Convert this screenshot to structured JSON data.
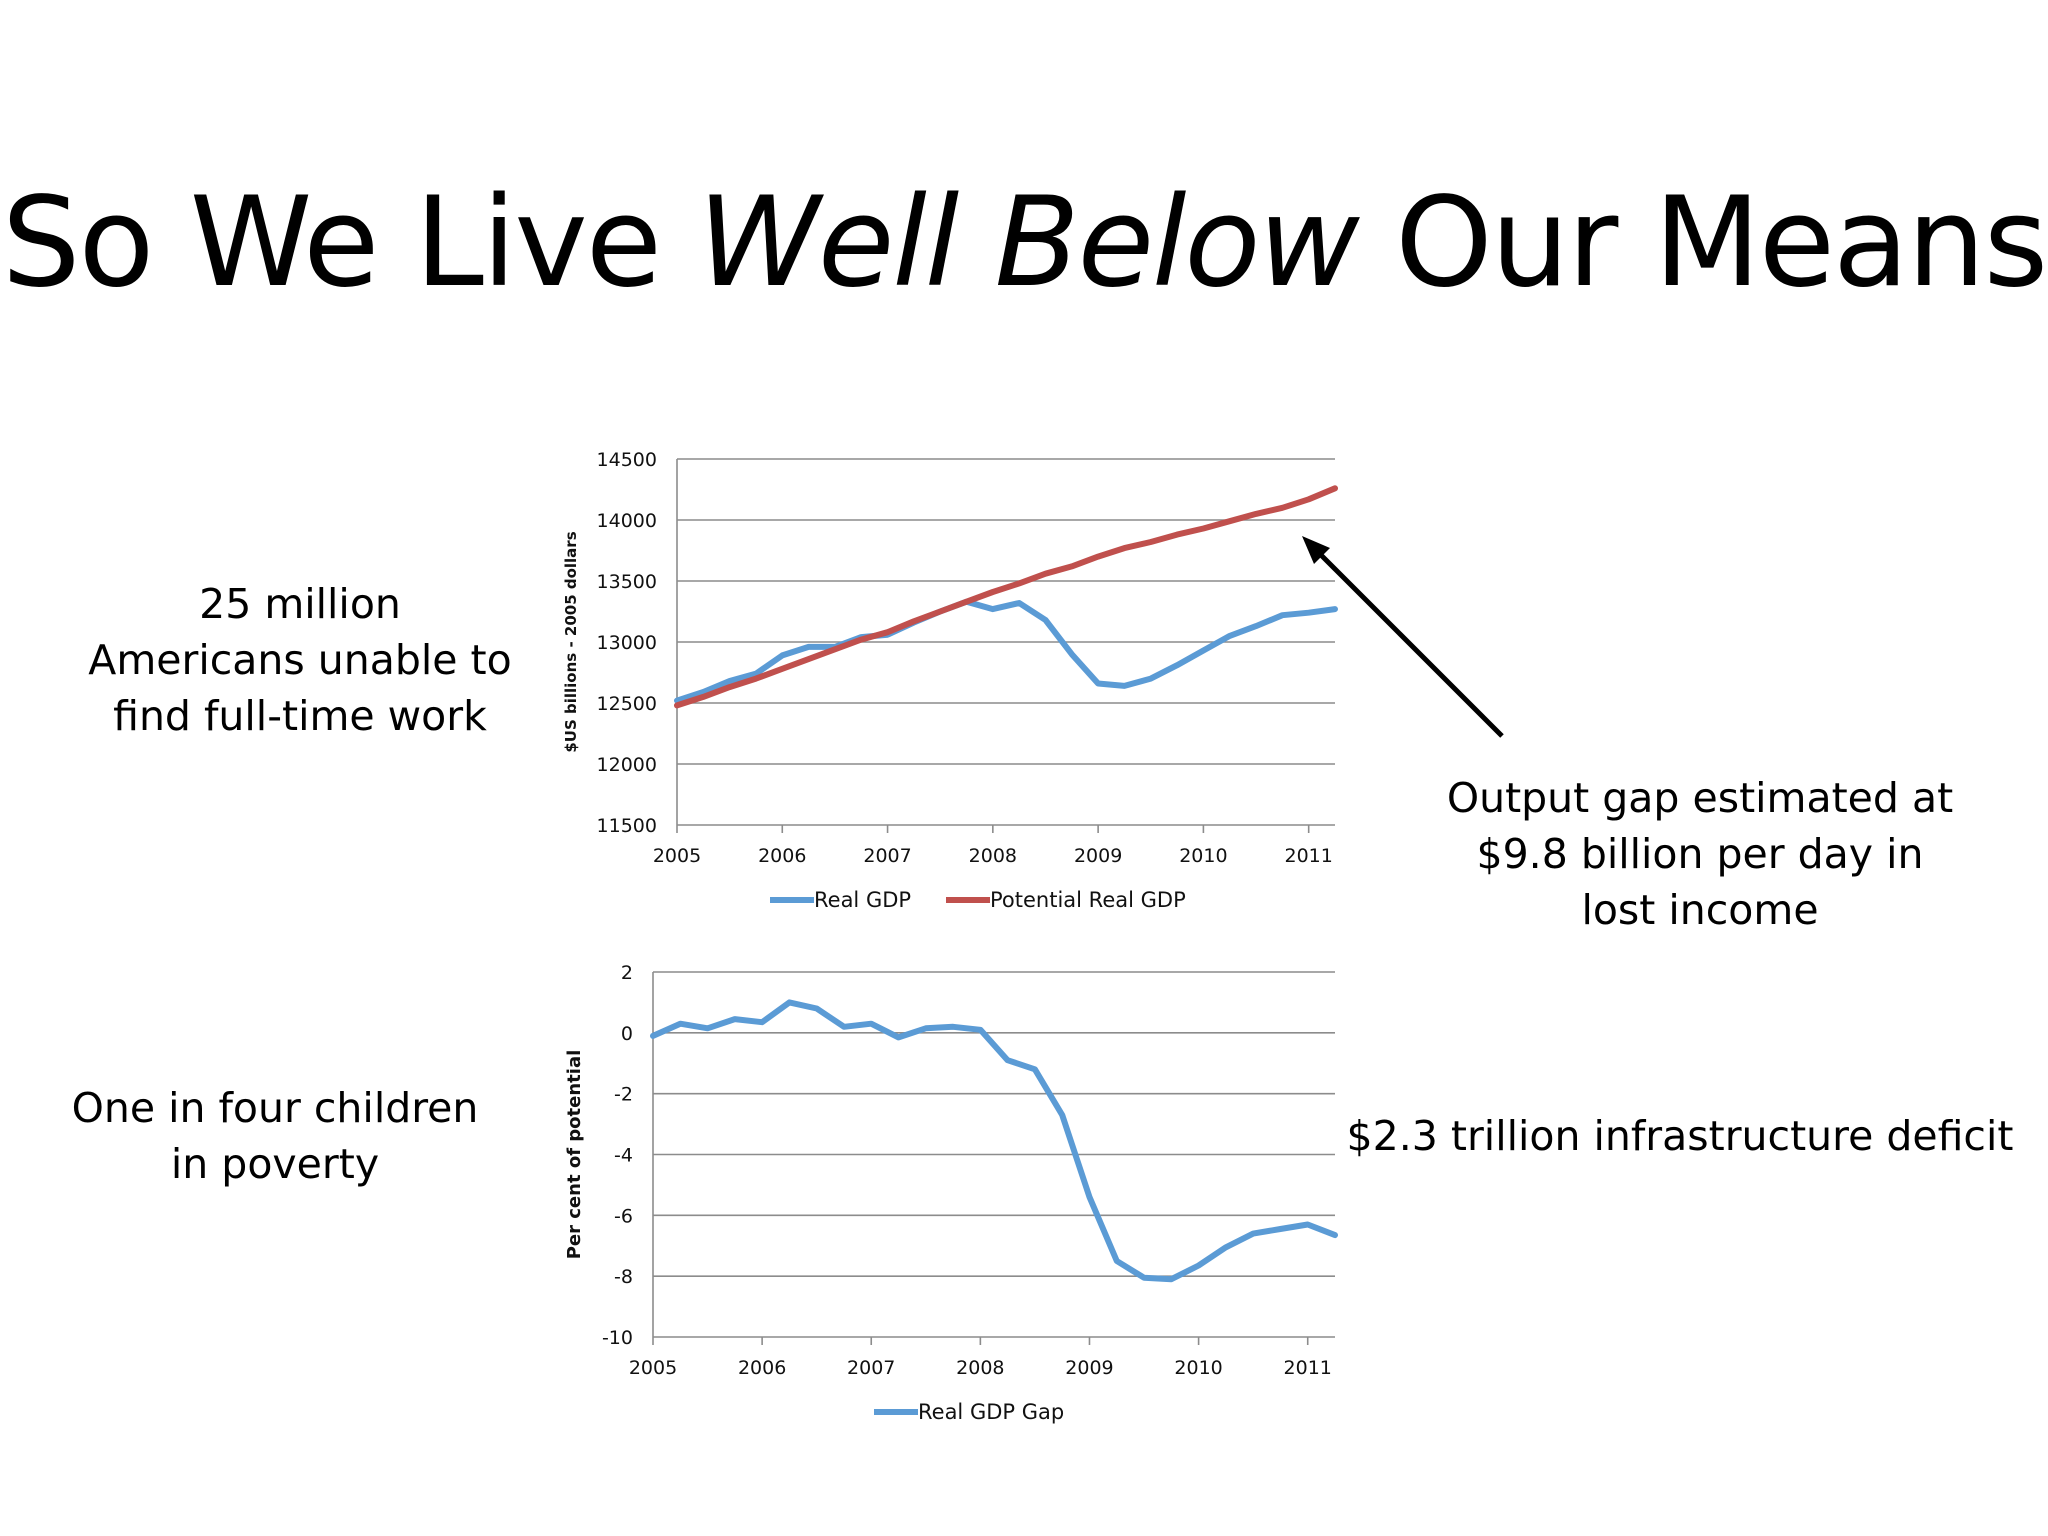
{
  "title": {
    "part1": "So We Live ",
    "part2": "Well Below",
    "part3": " Our Means"
  },
  "notes": {
    "left_top": [
      "25 million",
      "Americans unable to",
      "find full-time work"
    ],
    "left_bottom": [
      "One in four children",
      "in poverty"
    ],
    "right_top": [
      "Output gap estimated at",
      "$9.8 billion per day in",
      "lost income"
    ],
    "right_bottom": "$2.3 trillion infrastructure deficit"
  },
  "colors": {
    "real_gdp": "#5b9bd5",
    "potential_gdp": "#c0504d",
    "grid": "#8c8c8c",
    "arrow": "#000000"
  },
  "chart_data": [
    {
      "type": "line",
      "ylabel": "$US billions - 2005 dollars",
      "xlabel": "",
      "yticks": [
        11500,
        12000,
        12500,
        13000,
        13500,
        14000,
        14500
      ],
      "ylim": [
        11500,
        14500
      ],
      "xticks": [
        "2005",
        "2006",
        "2007",
        "2008",
        "2009",
        "2010",
        "2011"
      ],
      "xlim": [
        2005,
        2011.25
      ],
      "grid": true,
      "legend_position": "bottom",
      "series": [
        {
          "name": "Real GDP",
          "color": "#5b9bd5",
          "points": [
            [
              2005.0,
              12520
            ],
            [
              2005.25,
              12590
            ],
            [
              2005.5,
              12680
            ],
            [
              2005.75,
              12740
            ],
            [
              2006.0,
              12890
            ],
            [
              2006.25,
              12960
            ],
            [
              2006.5,
              12960
            ],
            [
              2006.75,
              13040
            ],
            [
              2007.0,
              13060
            ],
            [
              2007.25,
              13160
            ],
            [
              2007.5,
              13250
            ],
            [
              2007.75,
              13330
            ],
            [
              2008.0,
              13270
            ],
            [
              2008.25,
              13320
            ],
            [
              2008.5,
              13180
            ],
            [
              2008.75,
              12900
            ],
            [
              2009.0,
              12660
            ],
            [
              2009.25,
              12640
            ],
            [
              2009.5,
              12700
            ],
            [
              2009.75,
              12810
            ],
            [
              2010.0,
              12930
            ],
            [
              2010.25,
              13050
            ],
            [
              2010.5,
              13130
            ],
            [
              2010.75,
              13220
            ],
            [
              2011.0,
              13240
            ],
            [
              2011.25,
              13270
            ]
          ]
        },
        {
          "name": "Potential Real GDP",
          "color": "#c0504d",
          "points": [
            [
              2005.0,
              12480
            ],
            [
              2005.25,
              12550
            ],
            [
              2005.5,
              12630
            ],
            [
              2005.75,
              12700
            ],
            [
              2006.0,
              12780
            ],
            [
              2006.25,
              12860
            ],
            [
              2006.5,
              12940
            ],
            [
              2006.75,
              13020
            ],
            [
              2007.0,
              13080
            ],
            [
              2007.25,
              13170
            ],
            [
              2007.5,
              13250
            ],
            [
              2007.75,
              13330
            ],
            [
              2008.0,
              13410
            ],
            [
              2008.25,
              13480
            ],
            [
              2008.5,
              13560
            ],
            [
              2008.75,
              13620
            ],
            [
              2009.0,
              13700
            ],
            [
              2009.25,
              13770
            ],
            [
              2009.5,
              13820
            ],
            [
              2009.75,
              13880
            ],
            [
              2010.0,
              13930
            ],
            [
              2010.25,
              13990
            ],
            [
              2010.5,
              14050
            ],
            [
              2010.75,
              14100
            ],
            [
              2011.0,
              14170
            ],
            [
              2011.25,
              14260
            ]
          ]
        }
      ],
      "annotation": "arrow pointing to Potential Real GDP line"
    },
    {
      "type": "line",
      "ylabel": "Per cent of potential",
      "xlabel": "",
      "yticks": [
        2,
        0,
        -2,
        -4,
        -6,
        -8,
        -10
      ],
      "ylim": [
        -10,
        2
      ],
      "xticks": [
        "2005",
        "2006",
        "2007",
        "2008",
        "2009",
        "2010",
        "2011"
      ],
      "xlim": [
        2005,
        2011.25
      ],
      "grid": true,
      "legend_position": "bottom",
      "series": [
        {
          "name": "Real GDP Gap",
          "color": "#5b9bd5",
          "points": [
            [
              2005.0,
              -0.1
            ],
            [
              2005.25,
              0.3
            ],
            [
              2005.5,
              0.15
            ],
            [
              2005.75,
              0.45
            ],
            [
              2006.0,
              0.35
            ],
            [
              2006.25,
              1.0
            ],
            [
              2006.5,
              0.8
            ],
            [
              2006.75,
              0.2
            ],
            [
              2007.0,
              0.3
            ],
            [
              2007.25,
              -0.15
            ],
            [
              2007.5,
              0.15
            ],
            [
              2007.75,
              0.2
            ],
            [
              2008.0,
              0.1
            ],
            [
              2008.25,
              -0.9
            ],
            [
              2008.5,
              -1.2
            ],
            [
              2008.75,
              -2.7
            ],
            [
              2009.0,
              -5.4
            ],
            [
              2009.25,
              -7.5
            ],
            [
              2009.5,
              -8.05
            ],
            [
              2009.75,
              -8.1
            ],
            [
              2010.0,
              -7.65
            ],
            [
              2010.25,
              -7.05
            ],
            [
              2010.5,
              -6.6
            ],
            [
              2010.75,
              -6.45
            ],
            [
              2011.0,
              -6.3
            ],
            [
              2011.25,
              -6.65
            ]
          ]
        }
      ]
    }
  ]
}
